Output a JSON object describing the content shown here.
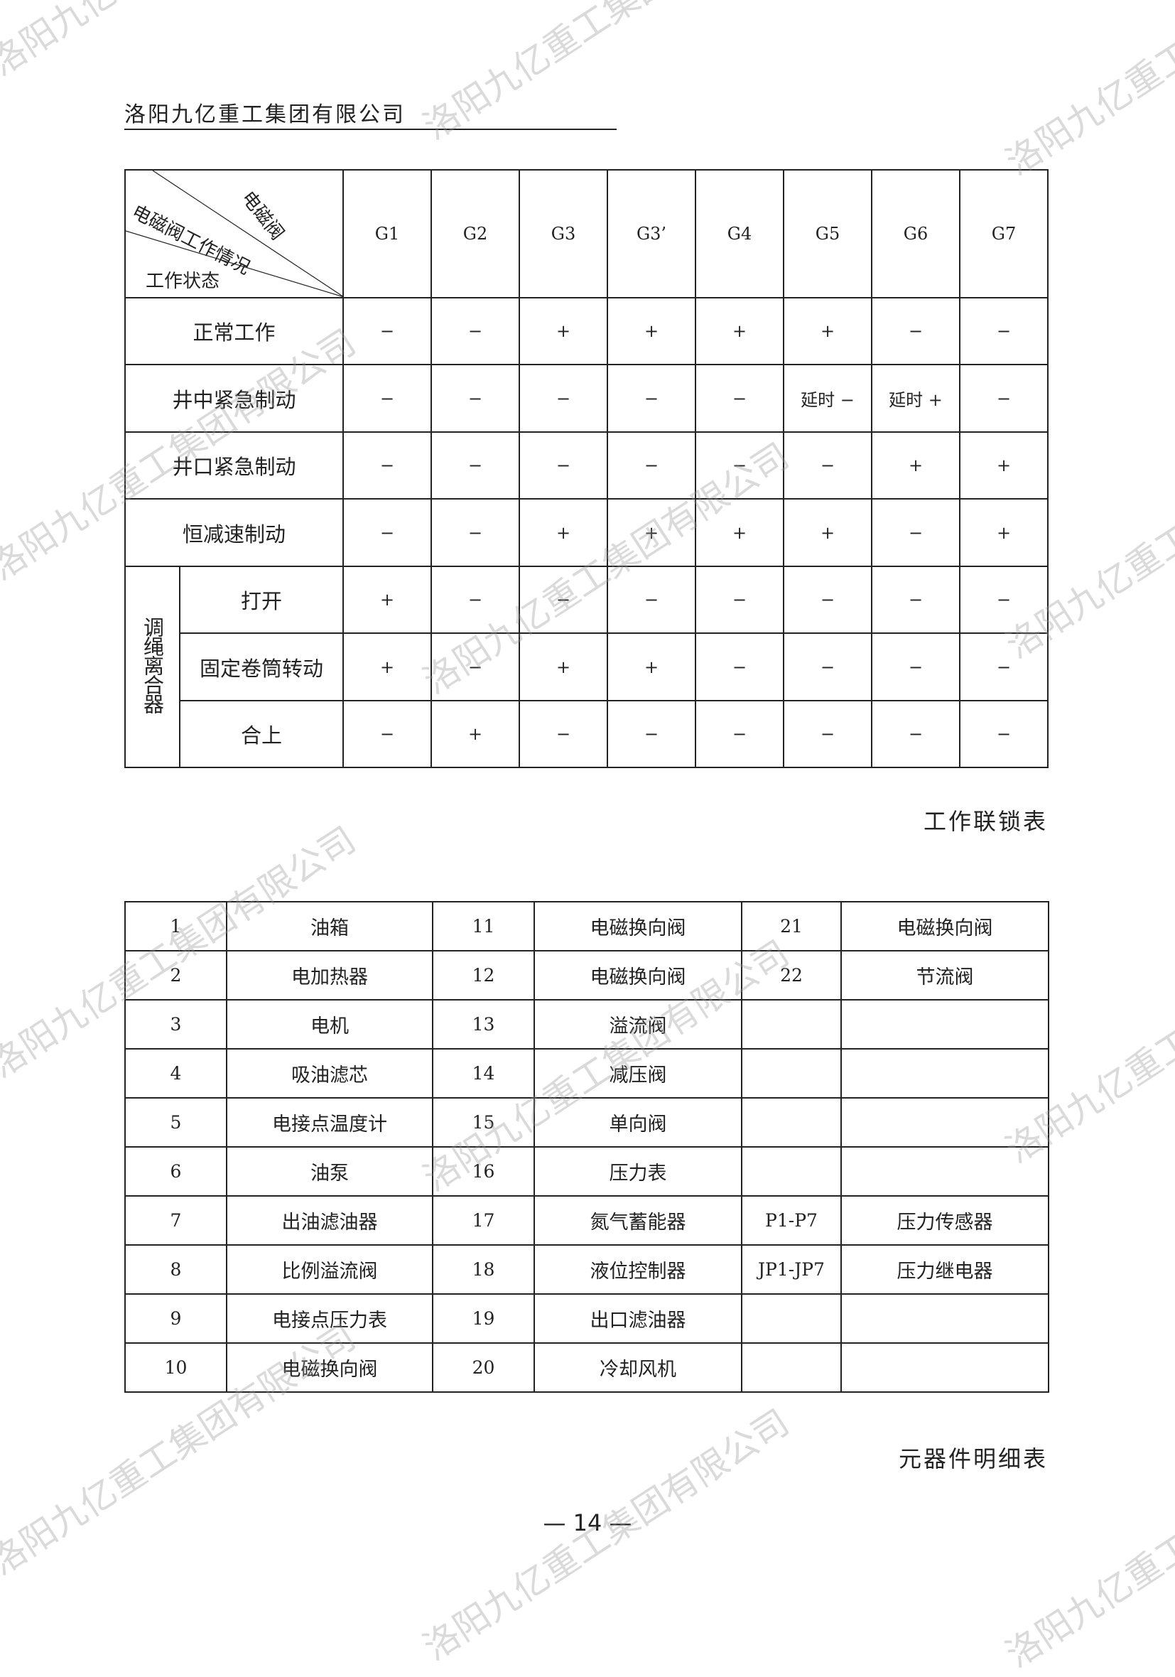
{
  "header": {
    "company": "洛阳九亿重工集团有限公司"
  },
  "watermark": "洛阳九亿重工集团有限公司",
  "interlock_table": {
    "corner": {
      "top": "电磁阀",
      "middle": "电磁阀工作情况",
      "bottom": "工作状态"
    },
    "columns": [
      "G1",
      "G2",
      "G3",
      "G3’",
      "G4",
      "G5",
      "G6",
      "G7"
    ],
    "group_label": "调绳离合器",
    "rows": [
      {
        "label": "正常工作",
        "values": [
          "−",
          "−",
          "+",
          "+",
          "+",
          "+",
          "−",
          "−"
        ]
      },
      {
        "label": "井中紧急制动",
        "values": [
          "−",
          "−",
          "−",
          "−",
          "−",
          "延时 −",
          "延时 +",
          "−"
        ]
      },
      {
        "label": "井口紧急制动",
        "values": [
          "−",
          "−",
          "−",
          "−",
          "−",
          "−",
          "+",
          "+"
        ]
      },
      {
        "label": "恒减速制动",
        "values": [
          "−",
          "−",
          "+",
          "+",
          "+",
          "+",
          "−",
          "+"
        ]
      },
      {
        "label": "打开",
        "values": [
          "+",
          "−",
          "−",
          "−",
          "−",
          "−",
          "−",
          "−"
        ]
      },
      {
        "label": "固定卷筒转动",
        "values": [
          "+",
          "−",
          "+",
          "+",
          "−",
          "−",
          "−",
          "−"
        ]
      },
      {
        "label": "合上",
        "values": [
          "−",
          "+",
          "−",
          "−",
          "−",
          "−",
          "−",
          "−"
        ]
      }
    ],
    "caption": "工作联锁表"
  },
  "parts_table": {
    "rows": [
      [
        "1",
        "油箱",
        "11",
        "电磁换向阀",
        "21",
        "电磁换向阀"
      ],
      [
        "2",
        "电加热器",
        "12",
        "电磁换向阀",
        "22",
        "节流阀"
      ],
      [
        "3",
        "电机",
        "13",
        "溢流阀",
        "",
        ""
      ],
      [
        "4",
        "吸油滤芯",
        "14",
        "减压阀",
        "",
        ""
      ],
      [
        "5",
        "电接点温度计",
        "15",
        "单向阀",
        "",
        ""
      ],
      [
        "6",
        "油泵",
        "16",
        "压力表",
        "",
        ""
      ],
      [
        "7",
        "出油滤油器",
        "17",
        "氮气蓄能器",
        "P1-P7",
        "压力传感器"
      ],
      [
        "8",
        "比例溢流阀",
        "18",
        "液位控制器",
        "JP1-JP7",
        "压力继电器"
      ],
      [
        "9",
        "电接点压力表",
        "19",
        "出口滤油器",
        "",
        ""
      ],
      [
        "10",
        "电磁换向阀",
        "20",
        "冷却风机",
        "",
        ""
      ]
    ],
    "caption": "元器件明细表"
  },
  "page_number": "— 14 —"
}
